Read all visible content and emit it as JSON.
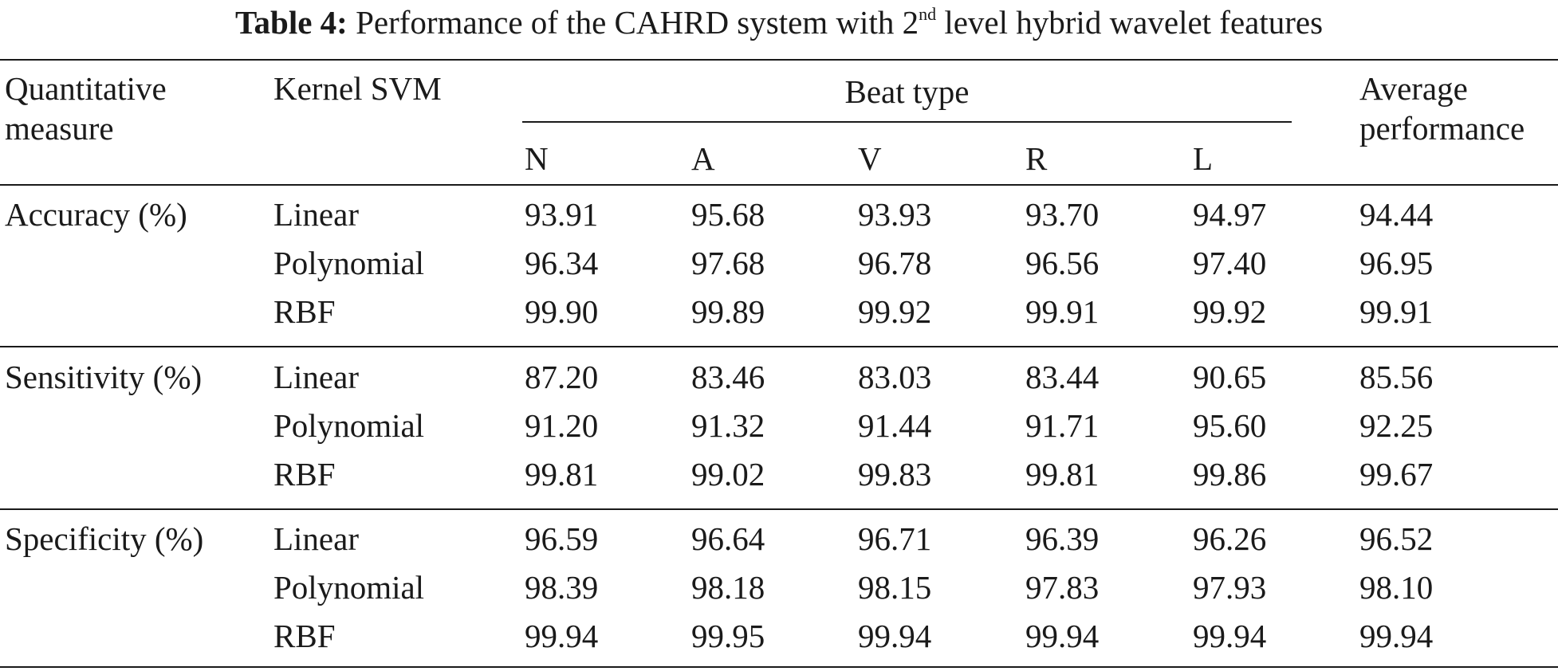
{
  "caption": {
    "label": "Table 4:",
    "text_before_sup": "Performance of the CAHRD system with 2",
    "sup": "nd",
    "text_after_sup": " level hybrid wavelet features"
  },
  "headers": {
    "measure_line1": "Quantitative",
    "measure_line2": "measure",
    "kernel": "Kernel SVM",
    "beat_type": "Beat type",
    "beats": [
      "N",
      "A",
      "V",
      "R",
      "L"
    ],
    "average_line1": "Average",
    "average_line2": "performance"
  },
  "groups": [
    {
      "measure": "Accuracy (%)",
      "rows": [
        {
          "kernel": "Linear",
          "values": [
            "93.91",
            "95.68",
            "93.93",
            "93.70",
            "94.97"
          ],
          "average": "94.44"
        },
        {
          "kernel": "Polynomial",
          "values": [
            "96.34",
            "97.68",
            "96.78",
            "96.56",
            "97.40"
          ],
          "average": "96.95"
        },
        {
          "kernel": "RBF",
          "values": [
            "99.90",
            "99.89",
            "99.92",
            "99.91",
            "99.92"
          ],
          "average": "99.91"
        }
      ]
    },
    {
      "measure": "Sensitivity (%)",
      "rows": [
        {
          "kernel": "Linear",
          "values": [
            "87.20",
            "83.46",
            "83.03",
            "83.44",
            "90.65"
          ],
          "average": "85.56"
        },
        {
          "kernel": "Polynomial",
          "values": [
            "91.20",
            "91.32",
            "91.44",
            "91.71",
            "95.60"
          ],
          "average": "92.25"
        },
        {
          "kernel": "RBF",
          "values": [
            "99.81",
            "99.02",
            "99.83",
            "99.81",
            "99.86"
          ],
          "average": "99.67"
        }
      ]
    },
    {
      "measure": "Specificity (%)",
      "rows": [
        {
          "kernel": "Linear",
          "values": [
            "96.59",
            "96.64",
            "96.71",
            "96.39",
            "96.26"
          ],
          "average": "96.52"
        },
        {
          "kernel": "Polynomial",
          "values": [
            "98.39",
            "98.18",
            "98.15",
            "97.83",
            "97.93"
          ],
          "average": "98.10"
        },
        {
          "kernel": "RBF",
          "values": [
            "99.94",
            "99.95",
            "99.94",
            "99.94",
            "99.94"
          ],
          "average": "99.94"
        }
      ]
    }
  ]
}
